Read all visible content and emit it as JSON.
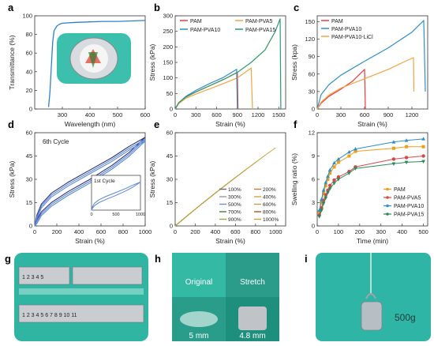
{
  "colors": {
    "pam": "#f03a3a",
    "pva5": "#f4a340",
    "pva10": "#2e8fc9",
    "pva15": "#2e9a6c",
    "licl": "#f4a340",
    "transmittance": "#2f7fd0",
    "cycle_dark": "#2a2f7a",
    "cycle_light": "#5b87d8",
    "swell_pam": "#f39c12",
    "swell_pva5": "#d94747",
    "swell_pva10": "#2e8fc9",
    "swell_pva15": "#2a8a5a",
    "photo_teal": "#2fb8a8"
  },
  "panels": {
    "a": "a",
    "b": "b",
    "c": "c",
    "d": "d",
    "e": "e",
    "f": "f",
    "g": "g",
    "h": "h",
    "i": "i"
  },
  "chart_data": [
    {
      "id": "a",
      "type": "line",
      "xlabel": "Wavelength (nm)",
      "ylabel": "Transmittance (%)",
      "xlim": [
        200,
        600
      ],
      "ylim": [
        0,
        100
      ],
      "xticks": [
        300,
        400,
        500,
        600
      ],
      "yticks": [
        0,
        20,
        40,
        60,
        80,
        100
      ],
      "series": [
        {
          "x": [
            250,
            255,
            260,
            265,
            270,
            280,
            290,
            300,
            350,
            400,
            450,
            500,
            550,
            600
          ],
          "y": [
            2,
            18,
            45,
            72,
            84,
            89,
            91,
            92,
            93,
            93.5,
            94,
            94,
            94.5,
            95
          ]
        }
      ]
    },
    {
      "id": "b",
      "type": "line",
      "xlabel": "Strain (%)",
      "ylabel": "Stress (kPa)",
      "xlim": [
        0,
        1600
      ],
      "ylim": [
        0,
        300
      ],
      "xticks": [
        0,
        300,
        600,
        900,
        1200,
        1500
      ],
      "yticks": [
        0,
        50,
        100,
        150,
        200,
        250,
        300
      ],
      "legend": [
        "PAM",
        "PAM-PVA5",
        "PAM-PVA10",
        "PAM-PVA15"
      ],
      "series": [
        {
          "name": "PAM",
          "x": [
            0,
            50,
            150,
            300,
            500,
            700,
            900,
            910
          ],
          "y": [
            0,
            18,
            38,
            55,
            75,
            95,
            118,
            0
          ]
        },
        {
          "name": "PAM-PVA5",
          "x": [
            0,
            50,
            150,
            300,
            500,
            700,
            900,
            1100,
            1120
          ],
          "y": [
            0,
            17,
            34,
            48,
            65,
            82,
            100,
            132,
            0
          ]
        },
        {
          "name": "PAM-PVA10",
          "x": [
            0,
            50,
            150,
            300,
            500,
            700,
            890,
            900
          ],
          "y": [
            0,
            20,
            40,
            60,
            82,
            102,
            128,
            0
          ]
        },
        {
          "name": "PAM-PVA15",
          "x": [
            0,
            50,
            150,
            300,
            500,
            700,
            900,
            1100,
            1300,
            1450,
            1520,
            1530
          ],
          "y": [
            0,
            20,
            38,
            55,
            75,
            95,
            118,
            150,
            190,
            250,
            290,
            0
          ]
        }
      ]
    },
    {
      "id": "c",
      "type": "line",
      "xlabel": "Strain (%)",
      "ylabel": "Stress (kpa)",
      "xlim": [
        0,
        1400
      ],
      "ylim": [
        0,
        160
      ],
      "xticks": [
        0,
        300,
        600,
        900,
        1200
      ],
      "yticks": [
        0,
        30,
        60,
        90,
        120,
        150
      ],
      "legend": [
        "PAM",
        "PAM-PVA10",
        "PAM-PVA10-LiCl"
      ],
      "series": [
        {
          "name": "PAM",
          "x": [
            0,
            50,
            150,
            300,
            450,
            600,
            610
          ],
          "y": [
            0,
            10,
            22,
            34,
            48,
            68,
            0
          ]
        },
        {
          "name": "PAM-PVA10",
          "x": [
            0,
            50,
            150,
            300,
            600,
            900,
            1200,
            1350,
            1370
          ],
          "y": [
            0,
            25,
            42,
            58,
            82,
            105,
            132,
            152,
            30
          ]
        },
        {
          "name": "PAM-PVA10-LiCl",
          "x": [
            0,
            50,
            150,
            300,
            600,
            900,
            1150,
            1220,
            1225
          ],
          "y": [
            0,
            12,
            24,
            36,
            52,
            68,
            84,
            88,
            30
          ]
        }
      ]
    },
    {
      "id": "d",
      "type": "line",
      "xlabel": "Strain (%)",
      "ylabel": "Stress (kPa)",
      "xlim": [
        0,
        1000
      ],
      "ylim": [
        0,
        60
      ],
      "xticks": [
        0,
        200,
        400,
        600,
        800,
        1000
      ],
      "yticks": [
        0,
        15,
        30,
        45,
        60
      ],
      "annotation": "6th Cycle",
      "inset": {
        "title": "1st Cycle",
        "xticks": [
          0,
          500,
          1000
        ]
      },
      "series": [
        {
          "name": "loading",
          "x": [
            0,
            20,
            60,
            150,
            300,
            500,
            700,
            850,
            1000
          ],
          "y": [
            0,
            7,
            14,
            21,
            28,
            36,
            44,
            51,
            57
          ]
        },
        {
          "name": "unloading",
          "x": [
            1000,
            850,
            700,
            500,
            300,
            150,
            60,
            20,
            0
          ],
          "y": [
            57,
            47,
            39,
            30,
            22,
            15,
            9,
            4,
            0
          ]
        }
      ]
    },
    {
      "id": "e",
      "type": "line",
      "xlabel": "Strain (%)",
      "ylabel": "Stress (kPa)",
      "xlim": [
        0,
        1100
      ],
      "ylim": [
        0,
        60
      ],
      "xticks": [
        0,
        200,
        400,
        600,
        800,
        1000
      ],
      "yticks": [
        0,
        15,
        30,
        45,
        60
      ],
      "legend": [
        "100%",
        "200%",
        "300%",
        "400%",
        "500%",
        "600%",
        "700%",
        "800%",
        "900%",
        "1000%"
      ],
      "series_colors": [
        "#6a6a6a",
        "#c87a3a",
        "#9a9a9a",
        "#d9a23a",
        "#7a8fb8",
        "#b8a24a",
        "#4a7a4a",
        "#a35a2a",
        "#8aa84a",
        "#c9a030"
      ],
      "max_strain": [
        100,
        200,
        300,
        400,
        500,
        600,
        700,
        800,
        900,
        1000
      ]
    },
    {
      "id": "f",
      "type": "line",
      "xlabel": "Time (min)",
      "ylabel": "Swelling ratio (%)",
      "xlim": [
        0,
        520
      ],
      "ylim": [
        0,
        12
      ],
      "xticks": [
        0,
        100,
        200,
        300,
        400,
        500
      ],
      "yticks": [
        0,
        3,
        6,
        9,
        12
      ],
      "legend": [
        "PAM",
        "PAM-PVA5",
        "PAM-PVA10",
        "PAM-PVA15"
      ],
      "x": [
        10,
        20,
        30,
        40,
        50,
        60,
        80,
        100,
        150,
        180,
        360,
        420,
        500
      ],
      "series": [
        {
          "name": "PAM",
          "values": [
            1.8,
            3.0,
            4.2,
            5.2,
            6.0,
            6.8,
            7.6,
            8.2,
            9.0,
            9.6,
            10.0,
            10.2,
            10.2
          ]
        },
        {
          "name": "PAM-PVA5",
          "values": [
            1.4,
            2.3,
            3.3,
            4.0,
            4.6,
            5.2,
            5.9,
            6.3,
            7.0,
            7.6,
            8.6,
            8.8,
            9.0
          ]
        },
        {
          "name": "PAM-PVA10",
          "values": [
            2.0,
            3.4,
            4.6,
            5.6,
            6.4,
            7.2,
            8.1,
            8.6,
            9.5,
            9.9,
            10.8,
            11.0,
            11.2
          ]
        },
        {
          "name": "PAM-PVA15",
          "values": [
            1.2,
            2.0,
            2.9,
            3.6,
            4.3,
            4.8,
            5.5,
            6.0,
            6.8,
            7.4,
            8.0,
            8.2,
            8.3
          ]
        }
      ]
    }
  ],
  "photos": {
    "g": {
      "ruler_top": "1 2 3 4 5",
      "ruler_bottom": "1 2 3 4 5 6 7 8 9 10 11"
    },
    "h": {
      "original": "Original",
      "stretch": "Stretch",
      "dim_left": "5 mm",
      "dim_right": "4.8 mm"
    },
    "i": {
      "weight": "500g"
    }
  }
}
